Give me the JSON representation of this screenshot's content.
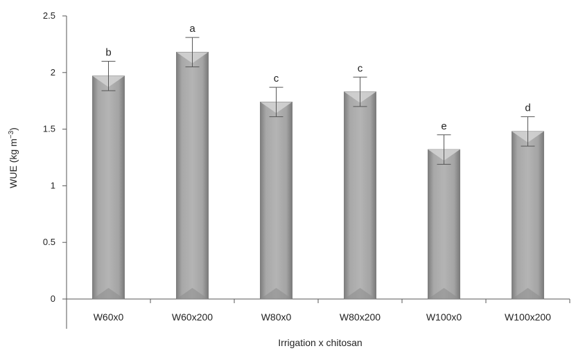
{
  "chart_data": {
    "type": "bar",
    "title": "",
    "xlabel": "Irrigation x chitosan",
    "ylabel": "WUE (kg m⁻³)",
    "ylim": [
      0,
      2.5
    ],
    "yticks": [
      "0",
      "0.5",
      "1",
      "1.5",
      "2",
      "2.5"
    ],
    "grid": false,
    "legend": "none",
    "categories": [
      "W60x0",
      "W60x200",
      "W80x0",
      "W80x200",
      "W100x0",
      "W100x200"
    ],
    "values": [
      1.97,
      2.18,
      1.74,
      1.83,
      1.32,
      1.48
    ],
    "errors": [
      0.13,
      0.13,
      0.13,
      0.13,
      0.13,
      0.13
    ],
    "letters": [
      "b",
      "a",
      "c",
      "c",
      "e",
      "d"
    ],
    "colors": {
      "bar_fill": "#9a9a9a",
      "bar_light": "#d4d4d4",
      "bar_edge": "#6e6e6e",
      "axis": "#555555",
      "error_bar": "#555555"
    }
  }
}
